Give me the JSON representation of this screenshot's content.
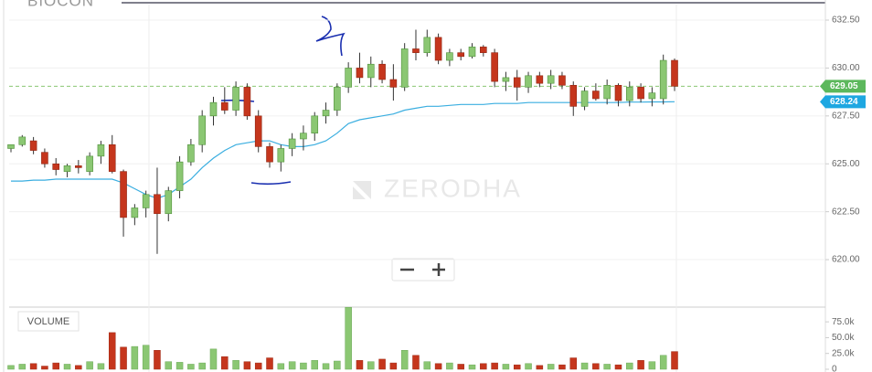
{
  "chart_data": {
    "type": "candlestick",
    "title": "BIOCON",
    "watermark": "ZERODHA",
    "volume_label": "VOLUME",
    "candles": [
      [
        625.8,
        626.0,
        625.6,
        626.0
      ],
      [
        626.0,
        626.5,
        625.9,
        626.4
      ],
      [
        626.2,
        626.4,
        625.5,
        625.7
      ],
      [
        625.6,
        625.8,
        624.8,
        625.0
      ],
      [
        625.0,
        625.3,
        624.4,
        624.7
      ],
      [
        624.6,
        625.0,
        624.3,
        624.9
      ],
      [
        624.9,
        625.2,
        624.5,
        624.8
      ],
      [
        624.6,
        625.6,
        624.4,
        625.4
      ],
      [
        625.4,
        626.2,
        625.0,
        626.0
      ],
      [
        626.0,
        626.5,
        624.5,
        624.6
      ],
      [
        624.6,
        624.7,
        621.2,
        622.2
      ],
      [
        622.2,
        622.9,
        621.8,
        622.7
      ],
      [
        622.7,
        623.6,
        622.2,
        623.4
      ],
      [
        623.4,
        624.8,
        620.3,
        622.4
      ],
      [
        622.4,
        623.8,
        622.0,
        623.6
      ],
      [
        623.6,
        625.4,
        623.2,
        625.1
      ],
      [
        625.1,
        626.3,
        624.9,
        626.0
      ],
      [
        626.0,
        627.8,
        625.6,
        627.5
      ],
      [
        627.5,
        628.5,
        627.0,
        628.2
      ],
      [
        628.2,
        629.0,
        627.6,
        627.8
      ],
      [
        627.8,
        629.3,
        627.5,
        629.0
      ],
      [
        629.0,
        629.2,
        627.3,
        627.5
      ],
      [
        627.5,
        627.8,
        625.6,
        625.9
      ],
      [
        625.9,
        626.1,
        624.8,
        625.1
      ],
      [
        625.1,
        626.0,
        624.6,
        625.8
      ],
      [
        625.8,
        626.6,
        625.4,
        626.3
      ],
      [
        626.3,
        627.0,
        625.7,
        626.6
      ],
      [
        626.6,
        627.7,
        626.2,
        627.5
      ],
      [
        627.5,
        628.2,
        627.1,
        627.8
      ],
      [
        627.8,
        629.2,
        627.5,
        629.0
      ],
      [
        629.0,
        630.3,
        628.7,
        630.0
      ],
      [
        630.0,
        630.8,
        629.2,
        629.5
      ],
      [
        629.5,
        630.6,
        629.0,
        630.2
      ],
      [
        630.2,
        630.4,
        629.2,
        629.4
      ],
      [
        629.4,
        630.2,
        628.3,
        629.0
      ],
      [
        629.0,
        631.3,
        628.8,
        631.0
      ],
      [
        631.0,
        632.0,
        630.4,
        630.8
      ],
      [
        630.8,
        632.0,
        630.6,
        631.6
      ],
      [
        631.6,
        631.8,
        630.2,
        630.4
      ],
      [
        630.4,
        631.0,
        630.1,
        630.8
      ],
      [
        630.8,
        631.0,
        630.4,
        630.6
      ],
      [
        630.6,
        631.3,
        630.5,
        631.1
      ],
      [
        631.1,
        631.2,
        630.6,
        630.8
      ],
      [
        630.8,
        631.0,
        629.0,
        629.3
      ],
      [
        629.3,
        629.8,
        628.8,
        629.5
      ],
      [
        629.5,
        629.9,
        628.3,
        629.0
      ],
      [
        629.0,
        629.8,
        628.7,
        629.6
      ],
      [
        629.6,
        629.8,
        629.0,
        629.2
      ],
      [
        629.2,
        629.9,
        628.9,
        629.6
      ],
      [
        629.6,
        629.8,
        628.9,
        629.1
      ],
      [
        629.1,
        629.3,
        627.5,
        628.0
      ],
      [
        628.0,
        629.0,
        627.8,
        628.8
      ],
      [
        628.8,
        629.2,
        628.3,
        628.4
      ],
      [
        628.4,
        629.4,
        628.1,
        629.1
      ],
      [
        629.1,
        629.2,
        628.0,
        628.3
      ],
      [
        628.3,
        629.3,
        628.0,
        629.0
      ],
      [
        629.0,
        629.2,
        628.2,
        628.4
      ],
      [
        628.4,
        629.0,
        628.0,
        628.7
      ],
      [
        628.4,
        630.7,
        628.1,
        630.4
      ],
      [
        630.4,
        630.5,
        628.8,
        629.05
      ]
    ],
    "ma": [
      624.1,
      624.1,
      624.15,
      624.15,
      624.2,
      624.2,
      624.2,
      624.2,
      624.2,
      624.2,
      624.0,
      623.7,
      623.4,
      623.2,
      623.4,
      623.8,
      624.2,
      624.8,
      625.3,
      625.7,
      626.0,
      626.1,
      626.2,
      626.2,
      626.0,
      625.9,
      625.9,
      626.0,
      626.2,
      626.6,
      627.1,
      627.3,
      627.4,
      627.5,
      627.6,
      627.8,
      627.9,
      628.0,
      628.0,
      628.05,
      628.1,
      628.1,
      628.1,
      628.15,
      628.15,
      628.15,
      628.2,
      628.2,
      628.2,
      628.2,
      628.2,
      628.2,
      628.2,
      628.2,
      628.2,
      628.22,
      628.22,
      628.23,
      628.23,
      628.24
    ],
    "volume": [
      6000,
      8000,
      9000,
      5000,
      10000,
      8000,
      6000,
      12000,
      9000,
      58000,
      35000,
      36000,
      38000,
      30000,
      12000,
      11000,
      8000,
      10000,
      32000,
      20000,
      14000,
      12000,
      10000,
      18000,
      9000,
      12000,
      10000,
      14000,
      9000,
      13000,
      98000,
      14000,
      12000,
      16000,
      10000,
      30000,
      22000,
      12000,
      9000,
      10000,
      8000,
      7000,
      9000,
      10000,
      8000,
      7000,
      9000,
      6000,
      8000,
      7000,
      18000,
      10000,
      9000,
      8000,
      7000,
      10000,
      14000,
      12000,
      22000,
      28000
    ],
    "colors": {
      "up": "#8bc773",
      "down": "#c5361d",
      "ma": "#3aaee0"
    },
    "ylim": [
      617.57,
      633.55
    ],
    "yticks": [
      {
        "value": 620,
        "label": "620.00"
      },
      {
        "value": 622.5,
        "label": "622.50"
      },
      {
        "value": 625,
        "label": "625.00"
      },
      {
        "value": 627.5,
        "label": "627.50"
      },
      {
        "value": 630,
        "label": "630.00"
      },
      {
        "value": 632.5,
        "label": "632.50"
      }
    ],
    "vol_ylim": [
      0,
      98300
    ],
    "vol_yticks": [
      0,
      {
        "value": 25000,
        "label": "25.0k"
      },
      {
        "value": 50000,
        "label": "50.0k"
      },
      {
        "value": 75000,
        "label": "75.0k"
      }
    ],
    "last_price": 629.05,
    "ma_price": 628.24,
    "grid": true
  }
}
